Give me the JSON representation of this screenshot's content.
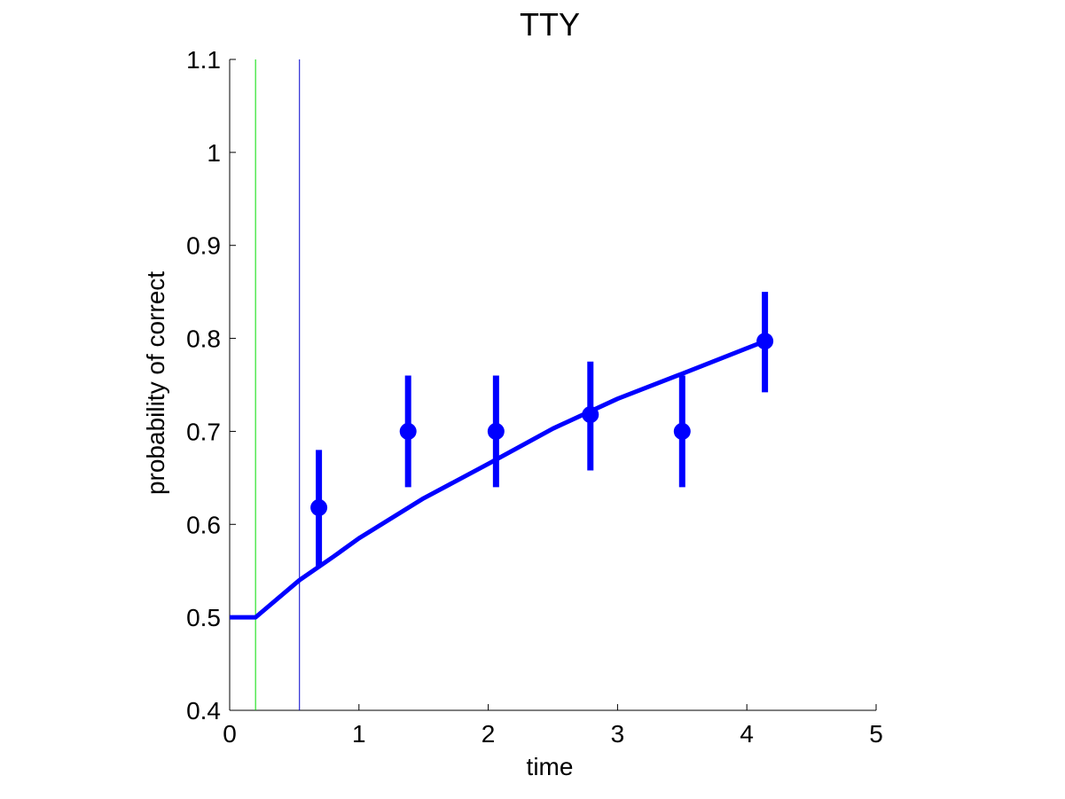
{
  "chart_data": {
    "type": "line",
    "title": "TTY",
    "xlabel": "time",
    "ylabel": "probability of correct",
    "xlim": [
      0,
      5
    ],
    "ylim": [
      0.4,
      1.1
    ],
    "x_ticks": [
      "0",
      "1",
      "2",
      "3",
      "4",
      "5"
    ],
    "y_ticks": [
      "0.4",
      "0.5",
      "0.6",
      "0.7",
      "0.8",
      "0.9",
      "1",
      "1.1"
    ],
    "grid": false,
    "colors": {
      "fit": "#0000ff",
      "points": "#0000ff",
      "green_line": "#00dd00",
      "blue_line": "#0000cc"
    },
    "vertical_lines": [
      {
        "x": 0.2,
        "color": "#00dd00"
      },
      {
        "x": 0.54,
        "color": "#0000cc"
      }
    ],
    "fit_curve": {
      "x": [
        0,
        0.2,
        0.54,
        0.8,
        1.0,
        1.5,
        2.0,
        2.5,
        3.0,
        3.5,
        4.14
      ],
      "y": [
        0.5,
        0.5,
        0.54,
        0.565,
        0.585,
        0.628,
        0.665,
        0.703,
        0.735,
        0.762,
        0.797
      ]
    },
    "points": {
      "x": [
        0.69,
        1.38,
        2.06,
        2.79,
        3.5,
        4.14
      ],
      "y": [
        0.618,
        0.7,
        0.7,
        0.718,
        0.7,
        0.797
      ],
      "err_low": [
        0.554,
        0.64,
        0.64,
        0.658,
        0.64,
        0.742
      ],
      "err_high": [
        0.68,
        0.76,
        0.76,
        0.775,
        0.76,
        0.85
      ]
    }
  }
}
